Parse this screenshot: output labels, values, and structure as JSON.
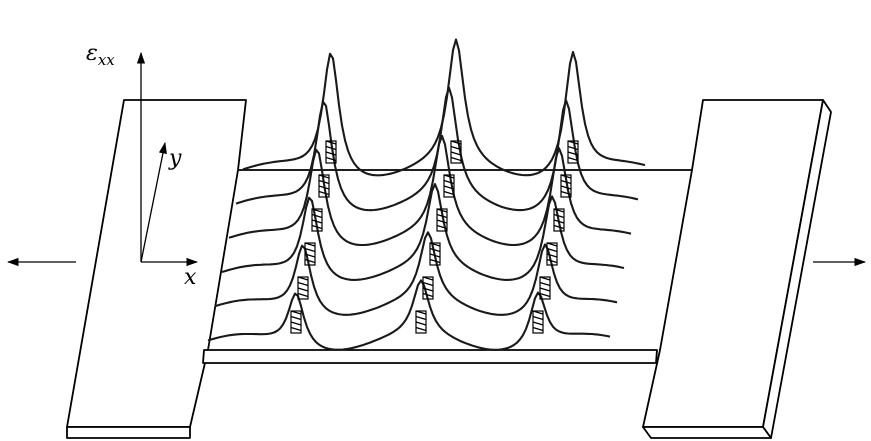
{
  "labels": {
    "strain": "ε",
    "strain_subscript": "xx",
    "x_axis": "x",
    "y_axis": "y"
  },
  "colors": {
    "line": "#000000",
    "background": "#ffffff"
  }
}
